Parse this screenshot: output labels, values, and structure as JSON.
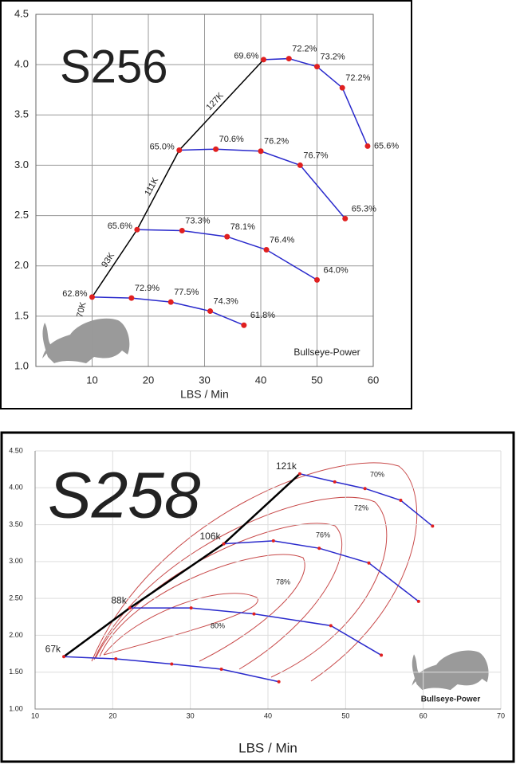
{
  "chart_data": [
    {
      "type": "line",
      "title": "S256",
      "x_label": "LBS / Min",
      "watermark": "Bullseye-Power",
      "xlim": [
        0,
        60
      ],
      "xticks": [
        10,
        20,
        30,
        40,
        50,
        60
      ],
      "ylim": [
        1.0,
        4.5
      ],
      "yticks": [
        {
          "value": 1,
          "label": "1.0"
        },
        {
          "value": 1.5,
          "label": "1.5"
        },
        {
          "value": 2,
          "label": "2.0"
        },
        {
          "value": 2.5,
          "label": "2.5"
        },
        {
          "value": 3,
          "label": "3.0"
        },
        {
          "value": 3.5,
          "label": "3.5"
        },
        {
          "value": 4,
          "label": "4.0"
        },
        {
          "value": 4.5,
          "label": "4.5"
        }
      ],
      "grid": true,
      "point_color": "#e02020",
      "series": [
        {
          "name": "70K",
          "color": "#2a2acc",
          "x": [
            10,
            17,
            24,
            31,
            37
          ],
          "values": [
            1.69,
            1.68,
            1.64,
            1.55,
            1.41
          ],
          "point_labels": [
            "62.8%",
            "72.9%",
            "77.5%",
            "74.3%",
            "61.8%"
          ]
        },
        {
          "name": "93K",
          "color": "#2a2acc",
          "x": [
            18,
            26,
            34,
            41,
            50
          ],
          "values": [
            2.36,
            2.35,
            2.29,
            2.16,
            1.86
          ],
          "point_labels": [
            "65.6%",
            "73.3%",
            "78.1%",
            "76.4%",
            "64.0%"
          ]
        },
        {
          "name": "111K",
          "color": "#2a2acc",
          "x": [
            25.5,
            32,
            40,
            47,
            55
          ],
          "values": [
            3.15,
            3.16,
            3.14,
            3.0,
            2.47
          ],
          "point_labels": [
            "65.0%",
            "70.6%",
            "76.2%",
            "76.7%",
            "65.3%"
          ]
        },
        {
          "name": "127K",
          "color": "#2a2acc",
          "x": [
            40.5,
            45,
            50,
            54.5,
            59
          ],
          "values": [
            4.05,
            4.06,
            3.98,
            3.77,
            3.19
          ],
          "point_labels": [
            "69.6%",
            "72.2%",
            "73.2%",
            "72.2%",
            "65.6%"
          ]
        }
      ],
      "surge_line": {
        "color": "#000000",
        "x": [
          10,
          18,
          25.5,
          40.5
        ],
        "values": [
          1.69,
          2.36,
          3.15,
          4.05
        ]
      }
    },
    {
      "type": "line",
      "title": "S258",
      "x_label": "LBS / Min",
      "watermark": "Bullseye-Power",
      "xlim": [
        10,
        70
      ],
      "xticks": [
        10,
        20,
        30,
        40,
        50,
        60,
        70
      ],
      "ylim": [
        1.0,
        4.5
      ],
      "yticks": [
        {
          "value": 1,
          "label": "1.00"
        },
        {
          "value": 1.5,
          "label": "1.50"
        },
        {
          "value": 2,
          "label": "2.00"
        },
        {
          "value": 2.5,
          "label": "2.50"
        },
        {
          "value": 3,
          "label": "3.00"
        },
        {
          "value": 3.5,
          "label": "3.50"
        },
        {
          "value": 4,
          "label": "4.00"
        },
        {
          "value": 4.5,
          "label": "4.50"
        }
      ],
      "grid": true,
      "point_color": "#e02020",
      "series": [
        {
          "name": "67k",
          "color": "#2a2acc",
          "x": [
            13.7,
            20.4,
            27.6,
            34.0,
            41.4
          ],
          "values": [
            1.71,
            1.68,
            1.61,
            1.54,
            1.37
          ]
        },
        {
          "name": "88k",
          "color": "#2a2acc",
          "x": [
            22.2,
            30.1,
            38.2,
            48.1,
            54.6
          ],
          "values": [
            2.37,
            2.37,
            2.29,
            2.13,
            1.73
          ]
        },
        {
          "name": "106k",
          "color": "#2a2acc",
          "x": [
            34.3,
            40.7,
            46.6,
            53.0,
            59.4
          ],
          "values": [
            3.24,
            3.28,
            3.18,
            2.98,
            2.46
          ]
        },
        {
          "name": "121k",
          "color": "#2a2acc",
          "x": [
            44.1,
            48.6,
            52.5,
            57.1,
            61.2
          ],
          "values": [
            4.19,
            4.08,
            3.99,
            3.83,
            3.48
          ]
        }
      ],
      "surge_line": {
        "color": "#000000",
        "x": [
          13.7,
          22.2,
          34.3,
          44.1
        ],
        "values": [
          1.71,
          2.37,
          3.24,
          4.19
        ]
      },
      "efficiency_labels": [
        "70%",
        "72%",
        "76%",
        "78%",
        "80%"
      ]
    }
  ]
}
